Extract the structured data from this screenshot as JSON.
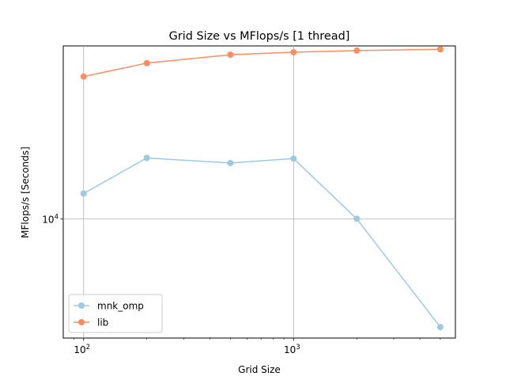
{
  "chart_data": {
    "type": "line",
    "title": "Grid Size vs MFlops/s [1 thread]",
    "xlabel": "Grid Size",
    "ylabel": "MFlops/s [Seconds]",
    "xscale": "log",
    "yscale": "log",
    "xlim": [
      80,
      5900
    ],
    "ylim": [
      5760,
      22300
    ],
    "x_ticks": [
      {
        "value": 100,
        "base": "10",
        "exp": "2"
      },
      {
        "value": 1000,
        "base": "10",
        "exp": "3"
      }
    ],
    "y_ticks": [
      {
        "value": 10000,
        "base": "10",
        "exp": "4"
      }
    ],
    "grid": true,
    "legend_position": "lower-left",
    "series": [
      {
        "name": "mnk_omp",
        "color": "#9ecae1",
        "x": [
          100,
          200,
          500,
          1000,
          2000,
          5000
        ],
        "y": [
          11250,
          13270,
          12960,
          13230,
          10010,
          6060
        ]
      },
      {
        "name": "lib",
        "color": "#fc8d62",
        "x": [
          100,
          200,
          500,
          1000,
          2000,
          5000
        ],
        "y": [
          19350,
          20590,
          21410,
          21660,
          21820,
          21950
        ]
      }
    ]
  }
}
